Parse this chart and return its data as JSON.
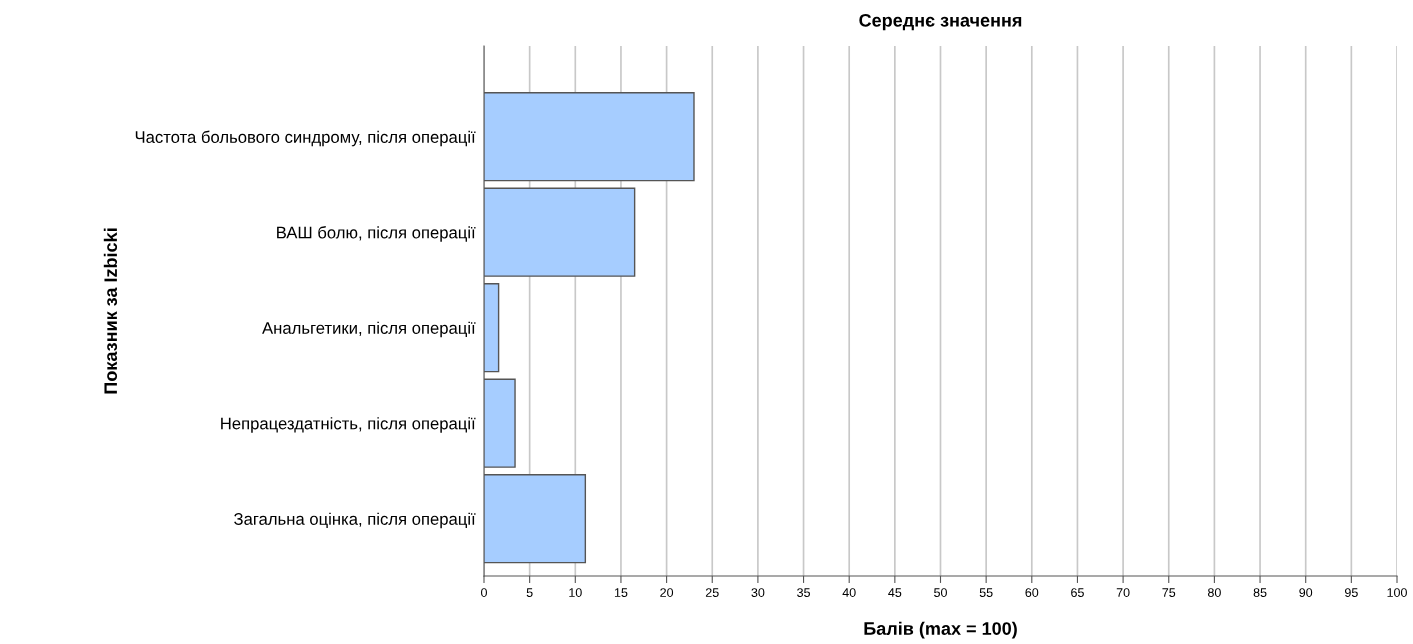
{
  "chart_data": {
    "type": "bar",
    "orientation": "horizontal",
    "title": "Середнє значення",
    "xlabel": "Балів (max = 100)",
    "ylabel": "Показник за Izbicki",
    "categories": [
      "Частота больового синдрому, після операції",
      "ВАШ болю, після операції",
      "Анальгетики, після операції",
      "Непрацездатність, після операції",
      "Загальна оцінка, після операції"
    ],
    "values": [
      23.0,
      16.5,
      1.6,
      3.4,
      11.1
    ],
    "color": "#a6cdff",
    "xlim": [
      0,
      100
    ],
    "xticks": [
      0,
      5,
      10,
      15,
      20,
      25,
      30,
      35,
      40,
      45,
      50,
      55,
      60,
      65,
      70,
      75,
      80,
      85,
      90,
      95,
      100
    ],
    "grid": "x"
  }
}
